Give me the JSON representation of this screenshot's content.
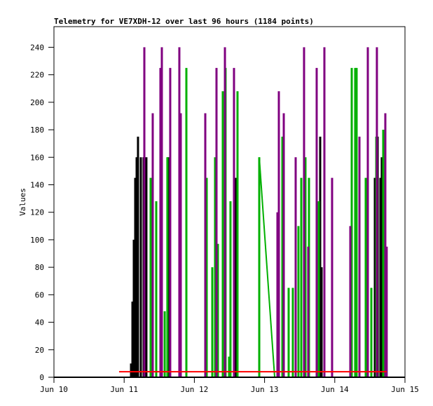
{
  "chart_data": {
    "type": "line",
    "title": "Telemetry for VE7XDH-12 over last 96 hours (1184 points)",
    "xlabel": "",
    "ylabel": "Values",
    "ylim": [
      0,
      255
    ],
    "yticks": [
      0,
      20,
      40,
      60,
      80,
      100,
      120,
      140,
      160,
      180,
      200,
      220,
      240
    ],
    "xlim": [
      "Jun 10 00:00",
      "Jun 15 00:00"
    ],
    "xticks": [
      "Jun 10",
      "Jun 11",
      "Jun 12",
      "Jun 13",
      "Jun 14",
      "Jun 15"
    ],
    "grid": false,
    "legend": "none",
    "series": [
      {
        "color": "#000000",
        "points": [
          [
            "Jun 11 02:21",
            10
          ],
          [
            "Jun 11 02:50",
            55
          ],
          [
            "Jun 11 03:18",
            100
          ],
          [
            "Jun 11 03:47",
            145
          ],
          [
            "Jun 11 04:16",
            160
          ],
          [
            "Jun 11 04:44",
            175
          ],
          [
            "Jun 11 05:42",
            160
          ],
          [
            "Jun 11 06:39",
            160
          ],
          [
            "Jun 11 07:36",
            160
          ],
          [
            "Jun 11 15:02",
            160
          ],
          [
            "Jun 12 13:48",
            145
          ],
          [
            "Jun 12 14:30",
            145
          ],
          [
            "Jun 13 19:01",
            175
          ],
          [
            "Jun 13 19:30",
            80
          ],
          [
            "Jun 14 13:42",
            145
          ],
          [
            "Jun 14 14:40",
            175
          ],
          [
            "Jun 14 15:36",
            145
          ],
          [
            "Jun 14 16:04",
            160
          ]
        ]
      },
      {
        "color": "#00b000",
        "points": [
          [
            "Jun 11 09:03",
            145
          ],
          [
            "Jun 11 10:58",
            128
          ],
          [
            "Jun 11 13:52",
            48
          ],
          [
            "Jun 11 14:47",
            160
          ],
          [
            "Jun 11 21:16",
            225
          ],
          [
            "Jun 12 04:13",
            145
          ],
          [
            "Jun 12 06:08",
            80
          ],
          [
            "Jun 12 07:05",
            160
          ],
          [
            "Jun 12 08:03",
            97
          ],
          [
            "Jun 12 09:43",
            208
          ],
          [
            "Jun 12 10:40",
            225
          ],
          [
            "Jun 12 11:52",
            15
          ],
          [
            "Jun 12 12:21",
            128
          ],
          [
            "Jun 12 14:45",
            208
          ],
          [
            "Jun 12 22:11",
            160
          ],
          [
            "Jun 13 06:05",
            175
          ],
          [
            "Jun 13 08:14",
            65
          ],
          [
            "Jun 13 09:40",
            65
          ],
          [
            "Jun 13 11:35",
            110
          ],
          [
            "Jun 13 12:33",
            145
          ],
          [
            "Jun 13 13:59",
            160
          ],
          [
            "Jun 13 15:11",
            145
          ],
          [
            "Jun 13 18:32",
            128
          ],
          [
            "Jun 14 05:48",
            225
          ],
          [
            "Jun 14 06:59",
            225
          ],
          [
            "Jun 14 07:28",
            225
          ],
          [
            "Jun 14 10:35",
            145
          ],
          [
            "Jun 14 12:30",
            65
          ],
          [
            "Jun 14 14:11",
            175
          ],
          [
            "Jun 14 16:34",
            180
          ]
        ],
        "ramp": [
          [
            "Jun 12 22:11",
            160
          ],
          [
            "Jun 13 03:27",
            0
          ]
        ]
      },
      {
        "color": "#800080",
        "points": [
          [
            "Jun 11 06:54",
            240
          ],
          [
            "Jun 11 09:46",
            192
          ],
          [
            "Jun 11 12:24",
            225
          ],
          [
            "Jun 11 12:53",
            240
          ],
          [
            "Jun 11 15:45",
            225
          ],
          [
            "Jun 11 18:52",
            240
          ],
          [
            "Jun 11 19:21",
            192
          ],
          [
            "Jun 12 03:44",
            192
          ],
          [
            "Jun 12 07:34",
            225
          ],
          [
            "Jun 12 10:27",
            240
          ],
          [
            "Jun 12 13:33",
            225
          ],
          [
            "Jun 13 04:24",
            120
          ],
          [
            "Jun 13 04:53",
            208
          ],
          [
            "Jun 13 06:34",
            192
          ],
          [
            "Jun 13 10:38",
            160
          ],
          [
            "Jun 13 13:30",
            240
          ],
          [
            "Jun 13 14:56",
            95
          ],
          [
            "Jun 13 17:49",
            225
          ],
          [
            "Jun 13 20:27",
            240
          ],
          [
            "Jun 13 23:05",
            145
          ],
          [
            "Jun 14 05:19",
            110
          ],
          [
            "Jun 14 08:26",
            175
          ],
          [
            "Jun 14 11:18",
            240
          ],
          [
            "Jun 14 14:24",
            240
          ],
          [
            "Jun 14 17:17",
            192
          ],
          [
            "Jun 14 17:45",
            95
          ]
        ]
      },
      {
        "color": "#ff0000",
        "flat": [
          [
            "Jun 10 22:16",
            4
          ],
          [
            "Jun 14 17:46",
            4
          ]
        ]
      }
    ]
  }
}
